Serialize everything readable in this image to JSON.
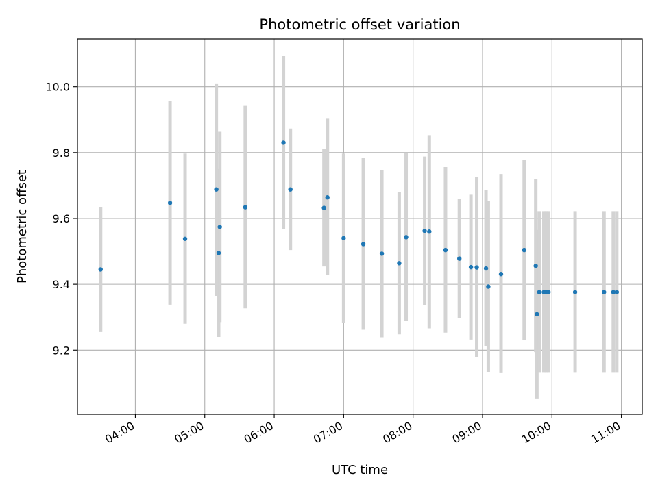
{
  "chart_data": {
    "type": "scatter",
    "title": "Photometric offset variation",
    "xlabel": "UTC time",
    "ylabel": "Photometric offset",
    "x_axis_type": "time",
    "xlim": [
      "03:10",
      "11:18"
    ],
    "ylim": [
      9.005,
      10.145
    ],
    "x_ticks": [
      "04:00",
      "05:00",
      "06:00",
      "07:00",
      "08:00",
      "09:00",
      "10:00",
      "11:00"
    ],
    "y_ticks": [
      "9.2",
      "9.4",
      "9.6",
      "9.8",
      "10.0"
    ],
    "grid": true,
    "legend": "none",
    "marker_color": "#1f77b4",
    "errorbar_color": "#d3d3d3",
    "points": [
      {
        "x": "03:30",
        "y": 9.445,
        "low": 9.255,
        "high": 9.635
      },
      {
        "x": "04:30",
        "y": 9.647,
        "low": 9.338,
        "high": 9.957
      },
      {
        "x": "04:43",
        "y": 9.538,
        "low": 9.28,
        "high": 9.797
      },
      {
        "x": "05:10",
        "y": 9.688,
        "low": 9.365,
        "high": 10.01
      },
      {
        "x": "05:12",
        "y": 9.495,
        "low": 9.24,
        "high": 9.75
      },
      {
        "x": "05:13",
        "y": 9.574,
        "low": 9.285,
        "high": 9.863
      },
      {
        "x": "05:35",
        "y": 9.634,
        "low": 9.327,
        "high": 9.942
      },
      {
        "x": "06:08",
        "y": 9.83,
        "low": 9.567,
        "high": 10.093
      },
      {
        "x": "06:14",
        "y": 9.688,
        "low": 9.504,
        "high": 9.873
      },
      {
        "x": "06:43",
        "y": 9.632,
        "low": 9.454,
        "high": 9.81
      },
      {
        "x": "06:46",
        "y": 9.664,
        "low": 9.428,
        "high": 9.903
      },
      {
        "x": "07:00",
        "y": 9.54,
        "low": 9.283,
        "high": 9.797
      },
      {
        "x": "07:17",
        "y": 9.522,
        "low": 9.262,
        "high": 9.783
      },
      {
        "x": "07:33",
        "y": 9.493,
        "low": 9.239,
        "high": 9.746
      },
      {
        "x": "07:48",
        "y": 9.464,
        "low": 9.248,
        "high": 9.681
      },
      {
        "x": "07:54",
        "y": 9.543,
        "low": 9.288,
        "high": 9.798
      },
      {
        "x": "08:10",
        "y": 9.562,
        "low": 9.337,
        "high": 9.788
      },
      {
        "x": "08:14",
        "y": 9.56,
        "low": 9.266,
        "high": 9.853
      },
      {
        "x": "08:28",
        "y": 9.504,
        "low": 9.253,
        "high": 9.756
      },
      {
        "x": "08:40",
        "y": 9.478,
        "low": 9.297,
        "high": 9.66
      },
      {
        "x": "08:50",
        "y": 9.452,
        "low": 9.232,
        "high": 9.672
      },
      {
        "x": "08:55",
        "y": 9.451,
        "low": 9.178,
        "high": 9.725
      },
      {
        "x": "09:03",
        "y": 9.448,
        "low": 9.212,
        "high": 9.686
      },
      {
        "x": "09:05",
        "y": 9.393,
        "low": 9.133,
        "high": 9.653
      },
      {
        "x": "09:16",
        "y": 9.431,
        "low": 9.13,
        "high": 9.735
      },
      {
        "x": "09:36",
        "y": 9.504,
        "low": 9.23,
        "high": 9.778
      },
      {
        "x": "09:46",
        "y": 9.456,
        "low": 9.194,
        "high": 9.719
      },
      {
        "x": "09:47",
        "y": 9.309,
        "low": 9.053,
        "high": 9.565
      },
      {
        "x": "09:49",
        "y": 9.376,
        "low": 9.131,
        "high": 9.622
      },
      {
        "x": "09:53",
        "y": 9.376,
        "low": 9.131,
        "high": 9.622
      },
      {
        "x": "09:55",
        "y": 9.376,
        "low": 9.131,
        "high": 9.622
      },
      {
        "x": "09:57",
        "y": 9.376,
        "low": 9.131,
        "high": 9.622
      },
      {
        "x": "10:20",
        "y": 9.376,
        "low": 9.131,
        "high": 9.622
      },
      {
        "x": "10:45",
        "y": 9.376,
        "low": 9.131,
        "high": 9.622
      },
      {
        "x": "10:53",
        "y": 9.376,
        "low": 9.131,
        "high": 9.622
      },
      {
        "x": "10:56",
        "y": 9.376,
        "low": 9.131,
        "high": 9.622
      }
    ]
  }
}
